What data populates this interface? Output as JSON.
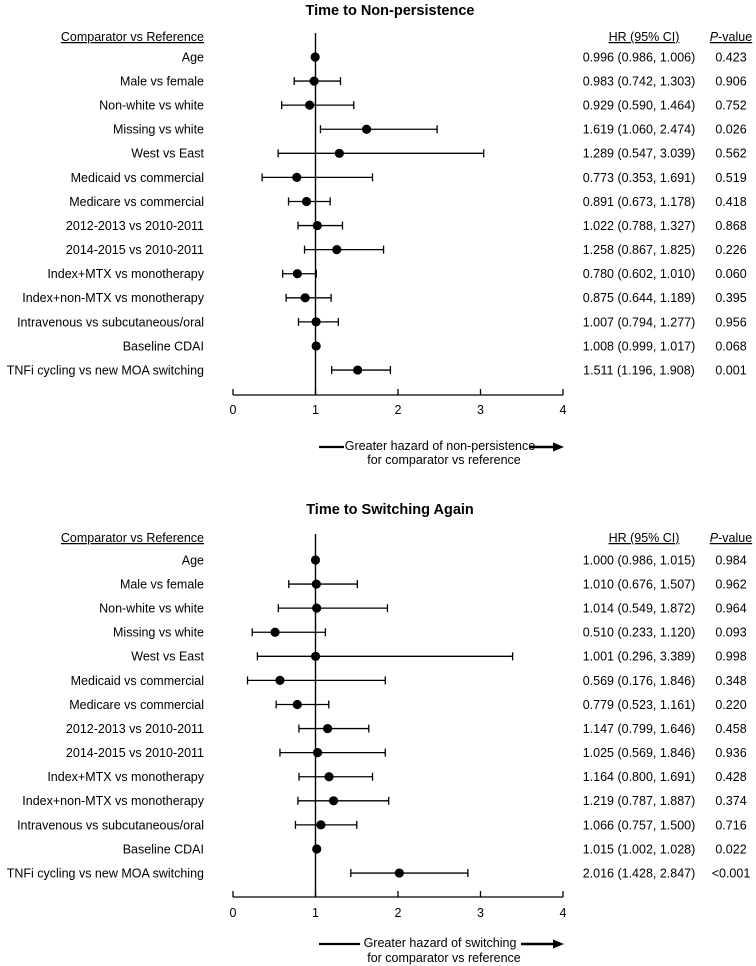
{
  "colors": {
    "foreground": "#000000",
    "background": "#ffffff"
  },
  "chart_data": [
    {
      "type": "scatter",
      "subtype": "forest-plot",
      "title": "Time to Non-persistence",
      "columns": {
        "rows": "Comparator vs Reference",
        "hr": "HR (95% CI)",
        "p_italic": "P",
        "p_rest": "-value"
      },
      "axis": {
        "min": 0,
        "max": 4,
        "ticks": [
          0,
          1,
          2,
          3,
          4
        ],
        "reference_line": 1,
        "grid": false
      },
      "rows": [
        {
          "label": "Age",
          "hr": 0.996,
          "ci_low": 0.986,
          "ci_high": 1.006,
          "hr_text": "0.996 (0.986, 1.006)",
          "p": "0.423"
        },
        {
          "label": "Male vs female",
          "hr": 0.983,
          "ci_low": 0.742,
          "ci_high": 1.303,
          "hr_text": "0.983 (0.742, 1.303)",
          "p": "0.906"
        },
        {
          "label": "Non-white vs white",
          "hr": 0.929,
          "ci_low": 0.59,
          "ci_high": 1.464,
          "hr_text": "0.929 (0.590, 1.464)",
          "p": "0.752"
        },
        {
          "label": "Missing vs white",
          "hr": 1.619,
          "ci_low": 1.06,
          "ci_high": 2.474,
          "hr_text": "1.619 (1.060, 2.474)",
          "p": "0.026"
        },
        {
          "label": "West vs East",
          "hr": 1.289,
          "ci_low": 0.547,
          "ci_high": 3.039,
          "hr_text": "1.289 (0.547, 3.039)",
          "p": "0.562"
        },
        {
          "label": "Medicaid vs commercial",
          "hr": 0.773,
          "ci_low": 0.353,
          "ci_high": 1.691,
          "hr_text": "0.773 (0.353, 1.691)",
          "p": "0.519"
        },
        {
          "label": "Medicare vs commercial",
          "hr": 0.891,
          "ci_low": 0.673,
          "ci_high": 1.178,
          "hr_text": "0.891 (0.673, 1.178)",
          "p": "0.418"
        },
        {
          "label": "2012-2013 vs 2010-2011",
          "hr": 1.022,
          "ci_low": 0.788,
          "ci_high": 1.327,
          "hr_text": "1.022 (0.788, 1.327)",
          "p": "0.868"
        },
        {
          "label": "2014-2015 vs 2010-2011",
          "hr": 1.258,
          "ci_low": 0.867,
          "ci_high": 1.825,
          "hr_text": "1.258 (0.867, 1.825)",
          "p": "0.226"
        },
        {
          "label": "Index+MTX vs monotherapy",
          "hr": 0.78,
          "ci_low": 0.602,
          "ci_high": 1.01,
          "hr_text": "0.780 (0.602, 1.010)",
          "p": "0.060"
        },
        {
          "label": "Index+non-MTX vs monotherapy",
          "hr": 0.875,
          "ci_low": 0.644,
          "ci_high": 1.189,
          "hr_text": "0.875 (0.644, 1.189)",
          "p": "0.395"
        },
        {
          "label": "Intravenous vs subcutaneous/oral",
          "hr": 1.007,
          "ci_low": 0.794,
          "ci_high": 1.277,
          "hr_text": "1.007 (0.794, 1.277)",
          "p": "0.956"
        },
        {
          "label": "Baseline CDAI",
          "hr": 1.008,
          "ci_low": 0.999,
          "ci_high": 1.017,
          "hr_text": "1.008 (0.999, 1.017)",
          "p": "0.068"
        },
        {
          "label": "TNFi cycling vs new MOA switching",
          "hr": 1.511,
          "ci_low": 1.196,
          "ci_high": 1.908,
          "hr_text": "1.511 (1.196, 1.908)",
          "p": "0.001"
        }
      ],
      "footer": {
        "line1": "Greater hazard of non-persistence",
        "line2": "for comparator vs reference"
      }
    },
    {
      "type": "scatter",
      "subtype": "forest-plot",
      "title": "Time to Switching Again",
      "columns": {
        "rows": "Comparator vs Reference",
        "hr": "HR (95% CI)",
        "p_italic": "P",
        "p_rest": "-value"
      },
      "axis": {
        "min": 0,
        "max": 4,
        "ticks": [
          0,
          1,
          2,
          3,
          4
        ],
        "reference_line": 1,
        "grid": false
      },
      "rows": [
        {
          "label": "Age",
          "hr": 1.0,
          "ci_low": 0.986,
          "ci_high": 1.015,
          "hr_text": "1.000 (0.986, 1.015)",
          "p": "0.984"
        },
        {
          "label": "Male vs female",
          "hr": 1.01,
          "ci_low": 0.676,
          "ci_high": 1.507,
          "hr_text": "1.010 (0.676, 1.507)",
          "p": "0.962"
        },
        {
          "label": "Non-white vs white",
          "hr": 1.014,
          "ci_low": 0.549,
          "ci_high": 1.872,
          "hr_text": "1.014 (0.549, 1.872)",
          "p": "0.964"
        },
        {
          "label": "Missing vs white",
          "hr": 0.51,
          "ci_low": 0.233,
          "ci_high": 1.12,
          "hr_text": "0.510 (0.233, 1.120)",
          "p": "0.093"
        },
        {
          "label": "West vs East",
          "hr": 1.001,
          "ci_low": 0.296,
          "ci_high": 3.389,
          "hr_text": "1.001 (0.296, 3.389)",
          "p": "0.998"
        },
        {
          "label": "Medicaid vs commercial",
          "hr": 0.569,
          "ci_low": 0.176,
          "ci_high": 1.846,
          "hr_text": "0.569 (0.176, 1.846)",
          "p": "0.348"
        },
        {
          "label": "Medicare vs commercial",
          "hr": 0.779,
          "ci_low": 0.523,
          "ci_high": 1.161,
          "hr_text": "0.779 (0.523, 1.161)",
          "p": "0.220"
        },
        {
          "label": "2012-2013 vs 2010-2011",
          "hr": 1.147,
          "ci_low": 0.799,
          "ci_high": 1.646,
          "hr_text": "1.147 (0.799, 1.646)",
          "p": "0.458"
        },
        {
          "label": "2014-2015 vs 2010-2011",
          "hr": 1.025,
          "ci_low": 0.569,
          "ci_high": 1.846,
          "hr_text": "1.025 (0.569, 1.846)",
          "p": "0.936"
        },
        {
          "label": "Index+MTX vs monotherapy",
          "hr": 1.164,
          "ci_low": 0.8,
          "ci_high": 1.691,
          "hr_text": "1.164 (0.800, 1.691)",
          "p": "0.428"
        },
        {
          "label": "Index+non-MTX vs monotherapy",
          "hr": 1.219,
          "ci_low": 0.787,
          "ci_high": 1.887,
          "hr_text": "1.219 (0.787, 1.887)",
          "p": "0.374"
        },
        {
          "label": "Intravenous vs subcutaneous/oral",
          "hr": 1.066,
          "ci_low": 0.757,
          "ci_high": 1.5,
          "hr_text": "1.066 (0.757, 1.500)",
          "p": "0.716"
        },
        {
          "label": "Baseline CDAI",
          "hr": 1.015,
          "ci_low": 1.002,
          "ci_high": 1.028,
          "hr_text": "1.015 (1.002, 1.028)",
          "p": "0.022"
        },
        {
          "label": "TNFi cycling vs new MOA switching",
          "hr": 2.016,
          "ci_low": 1.428,
          "ci_high": 2.847,
          "hr_text": "2.016 (1.428, 2.847)",
          "p": "<0.001"
        }
      ],
      "footer": {
        "line1": "Greater hazard of switching",
        "line2": "for comparator vs reference"
      }
    }
  ]
}
